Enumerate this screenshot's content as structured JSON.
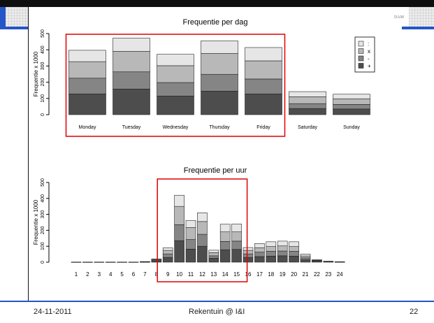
{
  "slide": {
    "footer_date": "24-11-2011",
    "footer_title": "Rekentuin @ I&I",
    "page_number": "22",
    "logo_text": "DAM",
    "accent_color": "#2456c8"
  },
  "chart_data": [
    {
      "type": "bar",
      "stacked": true,
      "title": "Frequentie per dag",
      "ylabel": "Frequentie x 1000",
      "ylim": [
        0,
        500
      ],
      "yticks": [
        "0",
        "100",
        "200",
        "300",
        "400",
        "500"
      ],
      "categories": [
        "Monday",
        "Tuesday",
        "Wednesday",
        "Thursday",
        "Friday",
        "Saturday",
        "Sunday"
      ],
      "series": [
        {
          "name": "+",
          "color": "#4d4d4d",
          "values": [
            128,
            158,
            115,
            145,
            128,
            38,
            35
          ]
        },
        {
          "name": "-",
          "color": "#858585",
          "values": [
            97,
            106,
            83,
            104,
            92,
            30,
            28
          ]
        },
        {
          "name": "x",
          "color": "#b8b8b8",
          "values": [
            102,
            126,
            104,
            128,
            112,
            42,
            35
          ]
        },
        {
          "name": ":",
          "color": "#e6e6e6",
          "values": [
            70,
            82,
            70,
            78,
            82,
            32,
            28
          ]
        }
      ],
      "legend": {
        "position": "top-right",
        "labels": [
          ":",
          "x",
          "-",
          "+"
        ]
      },
      "highlight": {
        "color": "#e00000",
        "categories": [
          "Monday",
          "Tuesday",
          "Wednesday",
          "Thursday",
          "Friday"
        ]
      }
    },
    {
      "type": "bar",
      "stacked": true,
      "title": "Frequentie per uur",
      "ylabel": "Frequentie x 1000",
      "ylim": [
        0,
        500
      ],
      "yticks": [
        "0",
        "100",
        "200",
        "300",
        "400",
        "500"
      ],
      "categories": [
        "1",
        "2",
        "3",
        "4",
        "5",
        "6",
        "7",
        "8",
        "9",
        "10",
        "11",
        "12",
        "13",
        "14",
        "15",
        "16",
        "17",
        "18",
        "19",
        "20",
        "21",
        "22",
        "23",
        "24"
      ],
      "series": [
        {
          "name": "+",
          "color": "#4d4d4d",
          "values": [
            1,
            1,
            1,
            1,
            1,
            1,
            2,
            8,
            30,
            135,
            82,
            100,
            25,
            78,
            80,
            30,
            35,
            38,
            40,
            38,
            15,
            8,
            3,
            2
          ]
        },
        {
          "name": "-",
          "color": "#858585",
          "values": [
            0,
            0,
            0,
            0,
            0,
            0,
            1,
            5,
            22,
            100,
            60,
            75,
            15,
            52,
            52,
            22,
            28,
            30,
            30,
            30,
            12,
            4,
            2,
            1
          ]
        },
        {
          "name": "x",
          "color": "#b8b8b8",
          "values": [
            0,
            0,
            0,
            0,
            0,
            0,
            1,
            5,
            22,
            115,
            75,
            80,
            20,
            60,
            58,
            22,
            28,
            30,
            32,
            30,
            12,
            2,
            1,
            0
          ]
        },
        {
          "name": ":",
          "color": "#e6e6e6",
          "values": [
            0,
            0,
            0,
            0,
            0,
            0,
            0,
            2,
            16,
            70,
            45,
            55,
            15,
            48,
            50,
            18,
            26,
            30,
            30,
            30,
            12,
            1,
            0,
            0
          ]
        }
      ],
      "highlight": {
        "color": "#e00000",
        "categories": [
          "9",
          "10",
          "11",
          "12",
          "13",
          "14",
          "15"
        ]
      }
    }
  ]
}
